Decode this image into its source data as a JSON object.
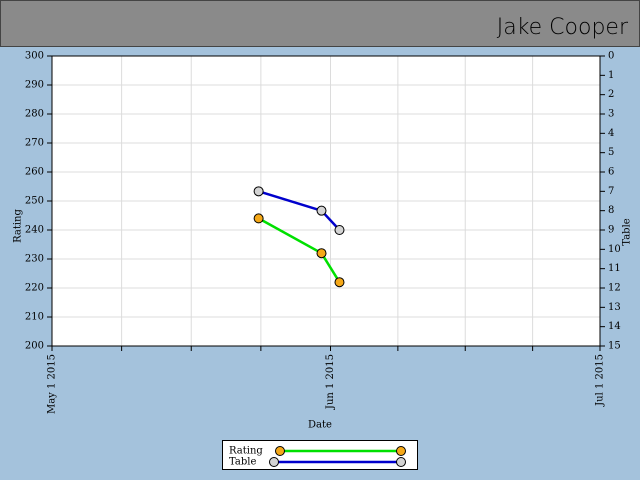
{
  "header": {
    "title": "Jake Cooper"
  },
  "chart_data": {
    "type": "line",
    "x": [
      "2015-05-24",
      "2015-05-31",
      "2015-06-02"
    ],
    "xlabel": "Date",
    "xlim": [
      "2015-05-01",
      "2015-07-01"
    ],
    "xticks": [
      {
        "value": "2015-05-01",
        "label": "May 1 2015"
      },
      {
        "value": "2015-06-01",
        "label": "Jun 1 2015"
      },
      {
        "value": "2015-07-01",
        "label": "Jul 1 2015"
      }
    ],
    "x_minor_per_major": 4,
    "ylabel": "Rating",
    "ylim": [
      200,
      300
    ],
    "yticks": [
      200,
      210,
      220,
      230,
      240,
      250,
      260,
      270,
      280,
      290,
      300
    ],
    "y2label": "Table",
    "y2lim": [
      15,
      0
    ],
    "y2ticks": [
      0,
      1,
      2,
      3,
      4,
      5,
      6,
      7,
      8,
      9,
      10,
      11,
      12,
      13,
      14,
      15
    ],
    "grid": true,
    "legend": "bottom",
    "series": [
      {
        "name": "Rating",
        "color": "#00e000",
        "marker": "#f5a818",
        "values": [
          244,
          232,
          222
        ]
      },
      {
        "name": "Table",
        "color": "#0000cc",
        "marker": "#d4d4d4",
        "axis": "y2",
        "values": [
          7,
          8,
          9
        ]
      }
    ]
  }
}
